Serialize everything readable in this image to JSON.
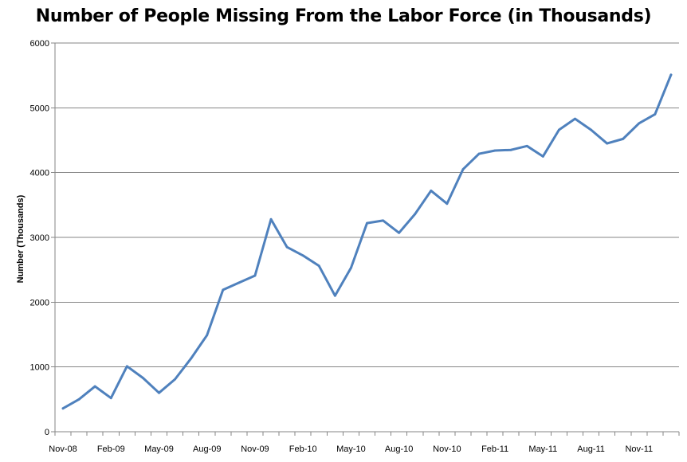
{
  "chart_data": {
    "type": "line",
    "title": "Number of People Missing From the Labor Force (in Thousands)",
    "ylabel": "Number (Thousands)",
    "xlabel": "",
    "ylim": [
      0,
      6000
    ],
    "yticks": [
      0,
      1000,
      2000,
      3000,
      4000,
      5000,
      6000
    ],
    "grid": "horizontal",
    "legend": "none",
    "line_color": "#4F81BD",
    "x": [
      "Nov-08",
      "Dec-08",
      "Jan-09",
      "Feb-09",
      "Mar-09",
      "Apr-09",
      "May-09",
      "Jun-09",
      "Jul-09",
      "Aug-09",
      "Sep-09",
      "Oct-09",
      "Nov-09",
      "Dec-09",
      "Jan-10",
      "Feb-10",
      "Mar-10",
      "Apr-10",
      "May-10",
      "Jun-10",
      "Jul-10",
      "Aug-10",
      "Sep-10",
      "Oct-10",
      "Nov-10",
      "Dec-10",
      "Jan-11",
      "Feb-11",
      "Mar-11",
      "Apr-11",
      "May-11",
      "Jun-11",
      "Jul-11",
      "Aug-11",
      "Sep-11",
      "Oct-11",
      "Nov-11",
      "Dec-11",
      "Jan-12"
    ],
    "xtick_labels": [
      "Nov-08",
      "Feb-09",
      "May-09",
      "Aug-09",
      "Nov-09",
      "Feb-10",
      "May-10",
      "Aug-10",
      "Nov-10",
      "Feb-11",
      "May-11",
      "Aug-11",
      "Nov-11"
    ],
    "series": [
      {
        "values": [
          360,
          500,
          700,
          520,
          1010,
          830,
          600,
          810,
          1130,
          1490,
          2190,
          2300,
          2410,
          3280,
          2850,
          2720,
          2560,
          2100,
          2530,
          3220,
          3260,
          3070,
          3360,
          3720,
          3520,
          4050,
          4290,
          4340,
          4350,
          4410,
          4250,
          4660,
          4830,
          4660,
          4450,
          4520,
          4760,
          4900,
          5510
        ]
      }
    ]
  }
}
